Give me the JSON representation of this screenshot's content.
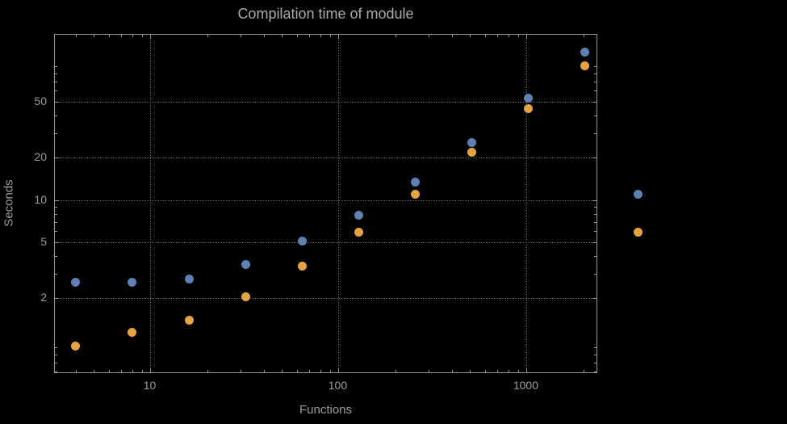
{
  "page": {
    "background": "#000000"
  },
  "chart_data": {
    "type": "scatter",
    "title": "Compilation time of module",
    "xlabel": "Functions",
    "ylabel": "Seconds",
    "x_scale": "log",
    "y_scale": "log",
    "grid": "dotted",
    "xlim": [
      3.1,
      2400
    ],
    "ylim": [
      0.58,
      150
    ],
    "x_ticks": [
      10,
      100,
      1000
    ],
    "y_ticks": [
      2,
      5,
      10,
      20,
      50
    ],
    "x": [
      4,
      8,
      16,
      32,
      64,
      128,
      256,
      512,
      1024,
      2048
    ],
    "series": [
      {
        "name": "series-blue",
        "color": "#5e81b5",
        "values": [
          2.6,
          2.6,
          2.75,
          3.5,
          5.1,
          7.8,
          13.5,
          25.5,
          53,
          113
        ]
      },
      {
        "name": "series-orange",
        "color": "#e8a33d",
        "values": [
          0.92,
          1.15,
          1.4,
          2.05,
          3.4,
          5.9,
          11,
          22,
          45,
          90
        ]
      }
    ],
    "legend": {
      "position": "outside-right",
      "labels_visible": false,
      "markers": [
        {
          "color": "#5e81b5"
        },
        {
          "color": "#e8a33d"
        }
      ]
    }
  }
}
